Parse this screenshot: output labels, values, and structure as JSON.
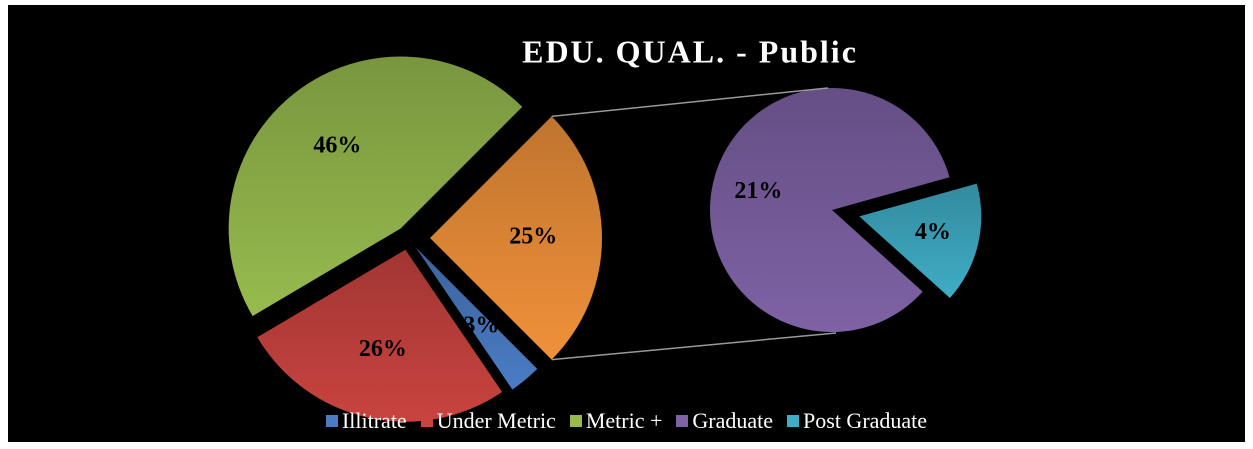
{
  "chart_data": {
    "type": "pie_of_pie",
    "title": "EDU. QUAL. - Public",
    "categories": [
      "Illitrate",
      "Under Metric",
      "Metric +",
      null
    ],
    "values": [
      3,
      26,
      46,
      25
    ],
    "value_labels": [
      "3%",
      "26%",
      "46%",
      "25%"
    ],
    "colors": [
      "#4a7cc4",
      "#c9433f",
      "#97bb4e",
      "#f0913a"
    ],
    "secondary": {
      "categories": [
        "Graduate",
        "Post Graduate"
      ],
      "values": [
        21,
        4
      ],
      "value_labels": [
        "21%",
        "4%"
      ],
      "colors": [
        "#7e62a5",
        "#3fadc6"
      ]
    }
  }
}
